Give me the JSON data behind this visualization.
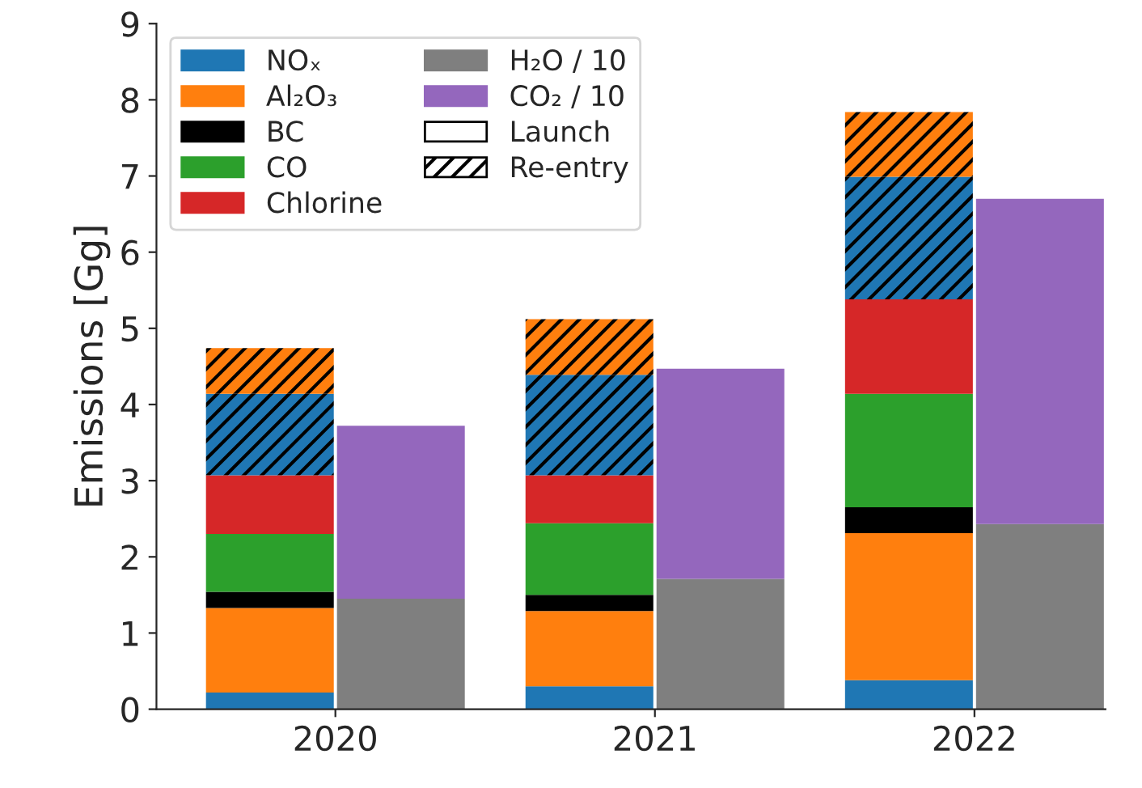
{
  "chart_data": {
    "type": "bar",
    "ylabel": "Emissions [Gg]",
    "xlim": [
      2019.44,
      2022.41
    ],
    "xticks": [
      2020,
      2021,
      2022
    ],
    "ylim": [
      0,
      9
    ],
    "yticks": [
      0,
      1,
      2,
      3,
      4,
      5,
      6,
      7,
      8,
      9
    ],
    "grid": false,
    "legend": "top left",
    "series": [
      {
        "name": "NOₓ",
        "color": "#1f77b4",
        "x": [
          2019.795,
          2020.795,
          2021.795
        ],
        "base": [
          0,
          0,
          0
        ],
        "values": [
          0.22,
          0.3,
          0.38
        ]
      },
      {
        "name": "Al₂O₃",
        "color": "#ff7f0e",
        "x": [
          2019.795,
          2020.795,
          2021.795
        ],
        "base": [
          0.22,
          0.3,
          0.38
        ],
        "values": [
          1.11,
          0.99,
          1.93
        ]
      },
      {
        "name": "BC",
        "color": "#000000",
        "x": [
          2019.795,
          2020.795,
          2021.795
        ],
        "base": [
          1.33,
          1.29,
          2.31
        ],
        "values": [
          0.21,
          0.21,
          0.34
        ]
      },
      {
        "name": "CO",
        "color": "#2ca02c",
        "x": [
          2019.795,
          2020.795,
          2021.795
        ],
        "base": [
          1.54,
          1.5,
          2.65
        ],
        "values": [
          0.76,
          0.94,
          1.49
        ]
      },
      {
        "name": "Chlorine",
        "color": "#d62728",
        "x": [
          2019.795,
          2020.795,
          2021.795
        ],
        "base": [
          2.3,
          2.44,
          4.14
        ],
        "values": [
          0.77,
          0.63,
          1.24
        ]
      },
      {
        "color": "#1f77b4",
        "line_style": "dashed",
        "x": [
          2019.795,
          2020.795,
          2021.795
        ],
        "base": [
          3.07,
          3.07,
          5.38
        ],
        "values": [
          1.07,
          1.32,
          1.61
        ]
      },
      {
        "color": "#ff7f0e",
        "line_style": "dashed",
        "x": [
          2019.795,
          2020.795,
          2021.795
        ],
        "base": [
          4.14,
          4.39,
          6.99
        ],
        "values": [
          0.6,
          0.73,
          0.85
        ]
      },
      {
        "name": "H₂O / 10",
        "color": "#7f7f7f",
        "x": [
          2020.205,
          2021.205,
          2022.205
        ],
        "base": [
          0,
          0,
          0
        ],
        "values": [
          1.45,
          1.71,
          2.43
        ]
      },
      {
        "name": "CO₂ / 10",
        "color": "#9467bd",
        "x": [
          2020.205,
          2021.205,
          2022.205
        ],
        "base": [
          1.45,
          1.71,
          2.43
        ],
        "values": [
          2.27,
          2.76,
          4.27
        ]
      }
    ],
    "annotations": [
      "Launch",
      "Re-entry"
    ]
  }
}
